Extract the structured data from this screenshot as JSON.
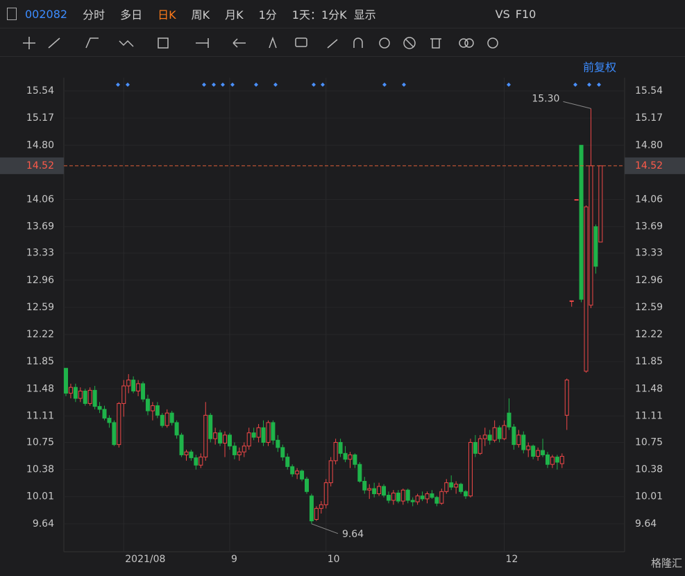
{
  "toolbar": {
    "code": "002082",
    "tabs": [
      "分时",
      "多日",
      "日K",
      "周K",
      "月K",
      "1分",
      "1天：1分K",
      "显示"
    ],
    "right": [
      "VS",
      "F10"
    ]
  },
  "adjust_label": "前复权",
  "watermark": "格隆汇",
  "chart_data": {
    "type": "candlestick",
    "up_color": "#f04848",
    "down_color": "#1fb34a",
    "ylim": [
      9.26,
      15.72
    ],
    "yticks": [
      15.54,
      15.17,
      {
        "value": 14.8,
        "label": "14.80"
      },
      14.06,
      13.69,
      13.33,
      12.96,
      12.59,
      12.22,
      11.85,
      11.48,
      11.11,
      10.75,
      10.38,
      10.01,
      9.64
    ],
    "xticks": [
      {
        "value": 12,
        "label": "2021/08"
      },
      {
        "value": 34,
        "label": "9"
      },
      {
        "value": 54,
        "label": "10"
      },
      {
        "value": 91,
        "label": "12"
      }
    ],
    "last_price": 14.52,
    "annotations": [
      "15.30",
      "9.64"
    ],
    "ohlc": [
      [
        11.76,
        11.76,
        11.38,
        11.42
      ],
      [
        11.42,
        11.55,
        11.35,
        11.5
      ],
      [
        11.5,
        11.55,
        11.3,
        11.35
      ],
      [
        11.35,
        11.5,
        11.3,
        11.45
      ],
      [
        11.45,
        11.48,
        11.25,
        11.28
      ],
      [
        11.28,
        11.5,
        11.25,
        11.46
      ],
      [
        11.46,
        11.52,
        11.2,
        11.24
      ],
      [
        11.24,
        11.3,
        11.15,
        11.2
      ],
      [
        11.2,
        11.25,
        11.05,
        11.08
      ],
      [
        11.08,
        11.12,
        10.95,
        11.02
      ],
      [
        11.02,
        11.05,
        10.7,
        10.72
      ],
      [
        10.72,
        11.3,
        10.68,
        11.28
      ],
      [
        11.28,
        11.6,
        11.1,
        11.52
      ],
      [
        11.52,
        11.68,
        11.42,
        11.6
      ],
      [
        11.6,
        11.65,
        11.42,
        11.45
      ],
      [
        11.45,
        11.6,
        11.38,
        11.55
      ],
      [
        11.55,
        11.58,
        11.3,
        11.34
      ],
      [
        11.34,
        11.4,
        11.12,
        11.18
      ],
      [
        11.18,
        11.3,
        11.05,
        11.25
      ],
      [
        11.25,
        11.3,
        11.08,
        11.12
      ],
      [
        11.12,
        11.15,
        10.95,
        10.98
      ],
      [
        10.98,
        11.2,
        10.95,
        11.15
      ],
      [
        11.15,
        11.18,
        10.98,
        11.02
      ],
      [
        11.02,
        11.05,
        10.8,
        10.85
      ],
      [
        10.85,
        10.88,
        10.55,
        10.58
      ],
      [
        10.58,
        10.65,
        10.5,
        10.62
      ],
      [
        10.62,
        10.65,
        10.5,
        10.54
      ],
      [
        10.54,
        10.58,
        10.38,
        10.44
      ],
      [
        10.44,
        10.6,
        10.4,
        10.55
      ],
      [
        10.55,
        11.3,
        10.5,
        11.12
      ],
      [
        11.12,
        11.15,
        10.75,
        10.8
      ],
      [
        10.8,
        10.95,
        10.72,
        10.88
      ],
      [
        10.88,
        10.92,
        10.7,
        10.74
      ],
      [
        10.74,
        10.9,
        10.55,
        10.85
      ],
      [
        10.85,
        10.88,
        10.65,
        10.7
      ],
      [
        10.7,
        10.75,
        10.52,
        10.58
      ],
      [
        10.58,
        10.68,
        10.5,
        10.62
      ],
      [
        10.62,
        10.75,
        10.55,
        10.7
      ],
      [
        10.7,
        10.95,
        10.65,
        10.88
      ],
      [
        10.88,
        10.95,
        10.78,
        10.82
      ],
      [
        10.82,
        11.0,
        10.75,
        10.95
      ],
      [
        10.95,
        11.05,
        10.7,
        10.75
      ],
      [
        10.75,
        11.05,
        10.7,
        11.02
      ],
      [
        11.02,
        11.05,
        10.72,
        10.78
      ],
      [
        10.78,
        10.85,
        10.62,
        10.68
      ],
      [
        10.68,
        10.72,
        10.5,
        10.55
      ],
      [
        10.55,
        10.6,
        10.38,
        10.42
      ],
      [
        10.42,
        10.45,
        10.28,
        10.32
      ],
      [
        10.32,
        10.4,
        10.25,
        10.36
      ],
      [
        10.36,
        10.38,
        10.22,
        10.25
      ],
      [
        10.25,
        10.28,
        10.05,
        10.08
      ],
      [
        10.02,
        10.05,
        9.64,
        9.68
      ],
      [
        9.7,
        9.88,
        9.68,
        9.85
      ],
      [
        9.85,
        9.95,
        9.78,
        9.9
      ],
      [
        9.9,
        10.25,
        9.85,
        10.2
      ],
      [
        10.2,
        10.55,
        10.15,
        10.5
      ],
      [
        10.5,
        10.8,
        10.45,
        10.75
      ],
      [
        10.75,
        10.8,
        10.55,
        10.6
      ],
      [
        10.6,
        10.7,
        10.48,
        10.52
      ],
      [
        10.52,
        10.62,
        10.4,
        10.58
      ],
      [
        10.58,
        10.6,
        10.4,
        10.45
      ],
      [
        10.45,
        10.48,
        10.2,
        10.22
      ],
      [
        10.22,
        10.28,
        10.05,
        10.1
      ],
      [
        10.1,
        10.18,
        9.98,
        10.12
      ],
      [
        10.12,
        10.2,
        10.0,
        10.05
      ],
      [
        10.05,
        10.2,
        10.02,
        10.15
      ],
      [
        10.15,
        10.18,
        10.0,
        10.03
      ],
      [
        10.03,
        10.08,
        9.92,
        9.96
      ],
      [
        9.96,
        10.1,
        9.9,
        10.06
      ],
      [
        10.06,
        10.1,
        9.92,
        9.95
      ],
      [
        9.95,
        10.12,
        9.9,
        10.1
      ],
      [
        10.1,
        10.12,
        9.92,
        9.96
      ],
      [
        9.96,
        10.0,
        9.88,
        9.94
      ],
      [
        9.94,
        10.05,
        9.9,
        10.02
      ],
      [
        10.02,
        10.08,
        9.95,
        9.98
      ],
      [
        9.98,
        10.08,
        9.92,
        10.05
      ],
      [
        10.05,
        10.1,
        9.98,
        10.0
      ],
      [
        10.0,
        10.02,
        9.88,
        9.92
      ],
      [
        9.92,
        10.12,
        9.9,
        10.08
      ],
      [
        10.08,
        10.25,
        10.05,
        10.2
      ],
      [
        10.2,
        10.3,
        10.1,
        10.14
      ],
      [
        10.14,
        10.22,
        10.05,
        10.18
      ],
      [
        10.18,
        10.2,
        10.05,
        10.08
      ],
      [
        10.08,
        10.1,
        9.98,
        10.02
      ],
      [
        10.02,
        10.8,
        10.0,
        10.75
      ],
      [
        10.75,
        10.85,
        10.55,
        10.6
      ],
      [
        10.6,
        10.85,
        10.58,
        10.8
      ],
      [
        10.8,
        10.95,
        10.7,
        10.85
      ],
      [
        10.85,
        10.92,
        10.72,
        10.78
      ],
      [
        10.78,
        11.05,
        10.75,
        10.95
      ],
      [
        10.95,
        10.98,
        10.75,
        10.8
      ],
      [
        10.8,
        11.05,
        10.78,
        10.98
      ],
      [
        11.15,
        11.35,
        10.92,
        10.96
      ],
      [
        10.96,
        11.0,
        10.65,
        10.72
      ],
      [
        10.72,
        10.92,
        10.68,
        10.85
      ],
      [
        10.85,
        10.9,
        10.6,
        10.65
      ],
      [
        10.65,
        10.75,
        10.55,
        10.7
      ],
      [
        10.7,
        10.72,
        10.52,
        10.56
      ],
      [
        10.56,
        10.68,
        10.5,
        10.64
      ],
      [
        10.64,
        10.8,
        10.55,
        10.58
      ],
      [
        10.58,
        10.62,
        10.4,
        10.45
      ],
      [
        10.45,
        10.58,
        10.4,
        10.55
      ],
      [
        10.55,
        10.58,
        10.38,
        10.48
      ],
      [
        10.46,
        10.6,
        10.4,
        10.56
      ],
      [
        11.12,
        11.62,
        10.92,
        11.6
      ],
      [
        12.67,
        12.68,
        12.6,
        12.68
      ],
      [
        14.06,
        14.06,
        14.06,
        14.06
      ],
      [
        14.8,
        14.8,
        12.66,
        12.7
      ],
      [
        11.72,
        13.98,
        11.7,
        13.96
      ],
      [
        12.62,
        15.3,
        12.58,
        14.52
      ],
      [
        13.69,
        13.72,
        13.05,
        13.15
      ],
      [
        13.48,
        14.52,
        13.48,
        14.52
      ]
    ]
  }
}
